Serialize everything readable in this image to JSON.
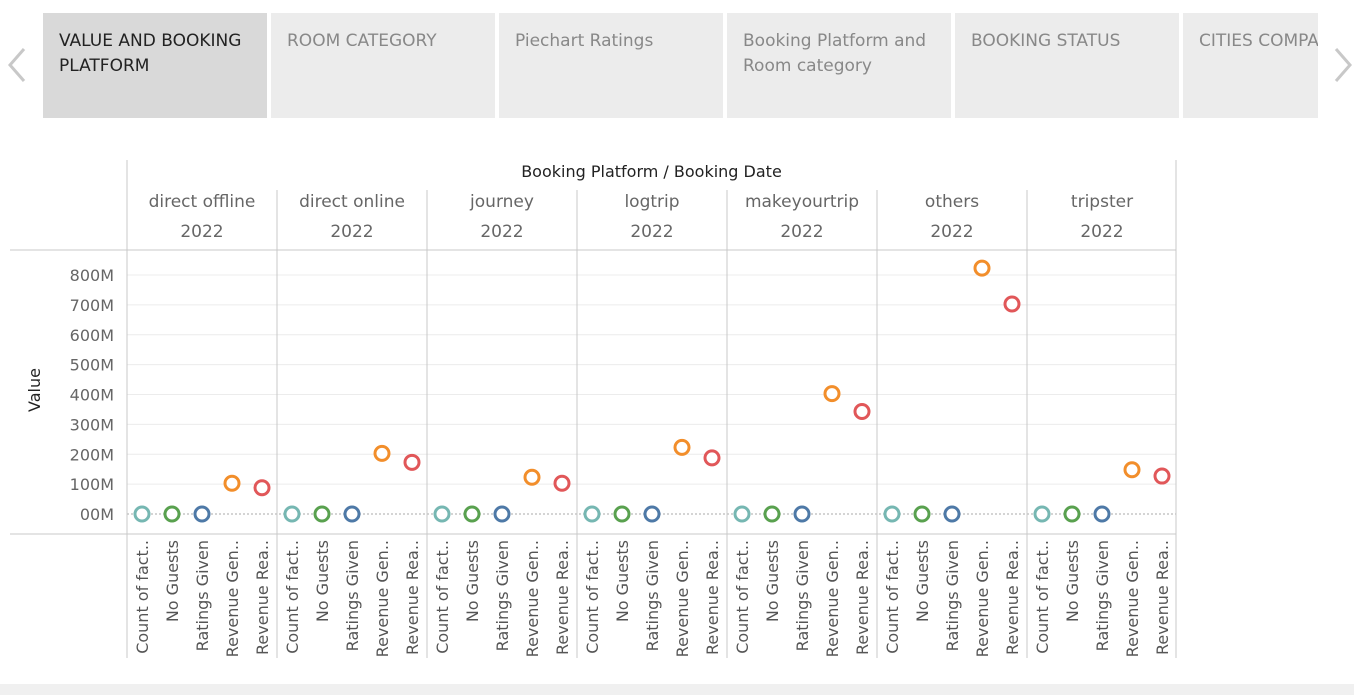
{
  "tabs": [
    {
      "label": "VALUE AND BOOKING PLATFORM",
      "active": true
    },
    {
      "label": "ROOM CATEGORY",
      "active": false
    },
    {
      "label": "Piechart Ratings",
      "active": false
    },
    {
      "label": "Booking Platform and Room category",
      "active": false
    },
    {
      "label": "BOOKING STATUS",
      "active": false
    },
    {
      "label": "CITIES COMPARISON",
      "active": false
    }
  ],
  "nav": {
    "prev_icon": "chevron-left-icon",
    "next_icon": "chevron-right-icon"
  },
  "chart_data": {
    "type": "scatter",
    "title": "",
    "column_header": "Booking Platform / Booking Date",
    "ylabel": "Value",
    "ylim": [
      0,
      800
    ],
    "yticks": [
      "00M",
      "100M",
      "200M",
      "300M",
      "400M",
      "500M",
      "600M",
      "700M",
      "800M"
    ],
    "measures": [
      "Count of fact..",
      "No Guests",
      "Ratings Given",
      "Revenue Gen..",
      "Revenue Rea.."
    ],
    "measure_colors": [
      "#76b7b2",
      "#59a14f",
      "#4e79a7",
      "#f28e2b",
      "#e15759"
    ],
    "panels": [
      {
        "platform": "direct offline",
        "year": "2022",
        "values": [
          0,
          0,
          0,
          103,
          88
        ]
      },
      {
        "platform": "direct online",
        "year": "2022",
        "values": [
          0,
          0,
          0,
          203,
          173
        ]
      },
      {
        "platform": "journey",
        "year": "2022",
        "values": [
          0,
          0,
          0,
          123,
          103
        ]
      },
      {
        "platform": "logtrip",
        "year": "2022",
        "values": [
          0,
          0,
          0,
          223,
          188
        ]
      },
      {
        "platform": "makeyourtrip",
        "year": "2022",
        "values": [
          0,
          0,
          0,
          403,
          343
        ]
      },
      {
        "platform": "others",
        "year": "2022",
        "values": [
          0,
          0,
          0,
          823,
          703
        ]
      },
      {
        "platform": "tripster",
        "year": "2022",
        "values": [
          0,
          0,
          0,
          148,
          127
        ]
      }
    ]
  }
}
